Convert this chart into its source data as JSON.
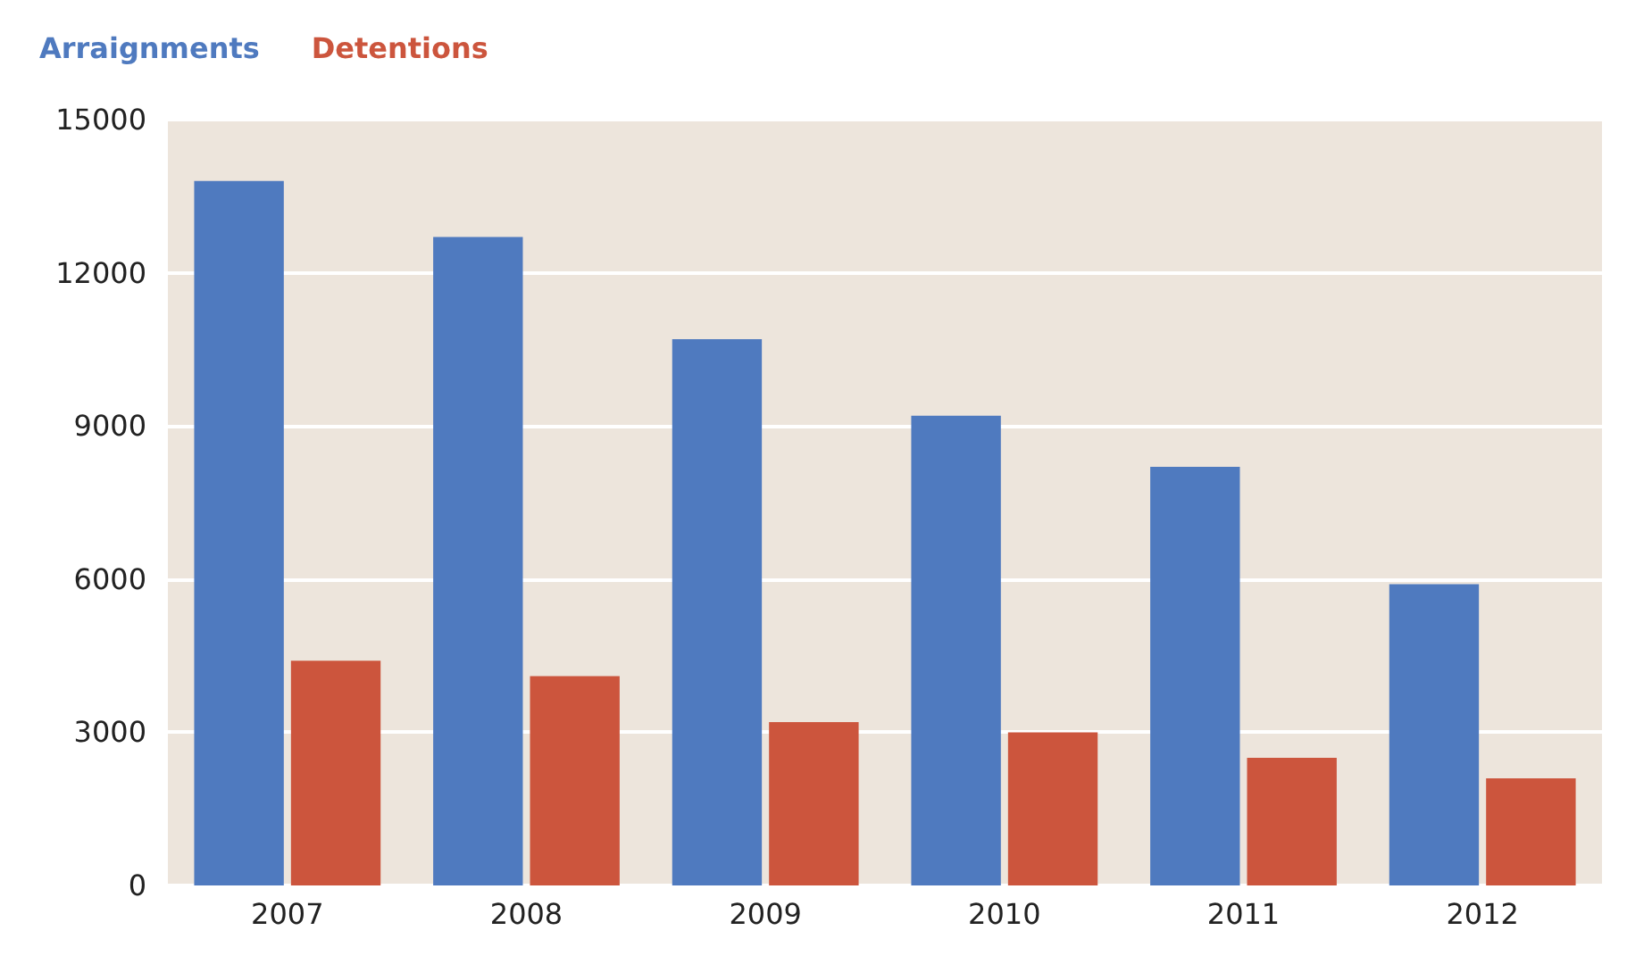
{
  "chart_data": {
    "type": "bar",
    "categories": [
      "2007",
      "2008",
      "2009",
      "2010",
      "2011",
      "2012"
    ],
    "series": [
      {
        "name": "Arraignments",
        "color": "#4f7abf",
        "values": [
          13800,
          12700,
          10700,
          9200,
          8200,
          5900
        ]
      },
      {
        "name": "Detentions",
        "color": "#cc553d",
        "values": [
          4400,
          4100,
          3200,
          3000,
          2500,
          2100
        ]
      }
    ],
    "ylim": [
      0,
      15000
    ],
    "yticks": [
      0,
      3000,
      6000,
      9000,
      12000,
      15000
    ],
    "grid": "y",
    "legend": "top left"
  }
}
